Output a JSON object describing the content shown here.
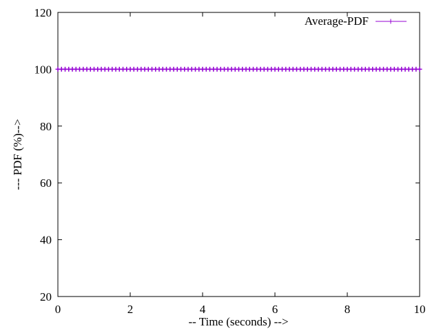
{
  "chart_data": {
    "type": "line",
    "title": "",
    "xlabel": "-- Time (seconds) -->",
    "ylabel": "--- PDF (%)-->",
    "xlim": [
      0,
      10
    ],
    "ylim": [
      20,
      120
    ],
    "xticks": [
      0,
      2,
      4,
      6,
      8,
      10
    ],
    "yticks": [
      20,
      40,
      60,
      80,
      100,
      120
    ],
    "grid": false,
    "legend_position": "top-right",
    "series": [
      {
        "name": "Average-PDF",
        "color": "#9400D3",
        "marker": "plus",
        "x": [
          0,
          0.1,
          0.2,
          0.3,
          0.4,
          0.5,
          0.6,
          0.7,
          0.8,
          0.9,
          1.0,
          1.1,
          1.2,
          1.3,
          1.4,
          1.5,
          1.6,
          1.7,
          1.8,
          1.9,
          2.0,
          2.1,
          2.2,
          2.3,
          2.4,
          2.5,
          2.6,
          2.7,
          2.8,
          2.9,
          3.0,
          3.1,
          3.2,
          3.3,
          3.4,
          3.5,
          3.6,
          3.7,
          3.8,
          3.9,
          4.0,
          4.1,
          4.2,
          4.3,
          4.4,
          4.5,
          4.6,
          4.7,
          4.8,
          4.9,
          5.0,
          5.1,
          5.2,
          5.3,
          5.4,
          5.5,
          5.6,
          5.7,
          5.8,
          5.9,
          6.0,
          6.1,
          6.2,
          6.3,
          6.4,
          6.5,
          6.6,
          6.7,
          6.8,
          6.9,
          7.0,
          7.1,
          7.2,
          7.3,
          7.4,
          7.5,
          7.6,
          7.7,
          7.8,
          7.9,
          8.0,
          8.1,
          8.2,
          8.3,
          8.4,
          8.5,
          8.6,
          8.7,
          8.8,
          8.9,
          9.0,
          9.1,
          9.2,
          9.3,
          9.4,
          9.5,
          9.6,
          9.7,
          9.8,
          9.9,
          10.0
        ],
        "y": [
          100,
          100,
          100,
          100,
          100,
          100,
          100,
          100,
          100,
          100,
          100,
          100,
          100,
          100,
          100,
          100,
          100,
          100,
          100,
          100,
          100,
          100,
          100,
          100,
          100,
          100,
          100,
          100,
          100,
          100,
          100,
          100,
          100,
          100,
          100,
          100,
          100,
          100,
          100,
          100,
          100,
          100,
          100,
          100,
          100,
          100,
          100,
          100,
          100,
          100,
          100,
          100,
          100,
          100,
          100,
          100,
          100,
          100,
          100,
          100,
          100,
          100,
          100,
          100,
          100,
          100,
          100,
          100,
          100,
          100,
          100,
          100,
          100,
          100,
          100,
          100,
          100,
          100,
          100,
          100,
          100,
          100,
          100,
          100,
          100,
          100,
          100,
          100,
          100,
          100,
          100,
          100,
          100,
          100,
          100,
          100,
          100,
          100,
          100,
          100,
          100
        ]
      }
    ]
  }
}
